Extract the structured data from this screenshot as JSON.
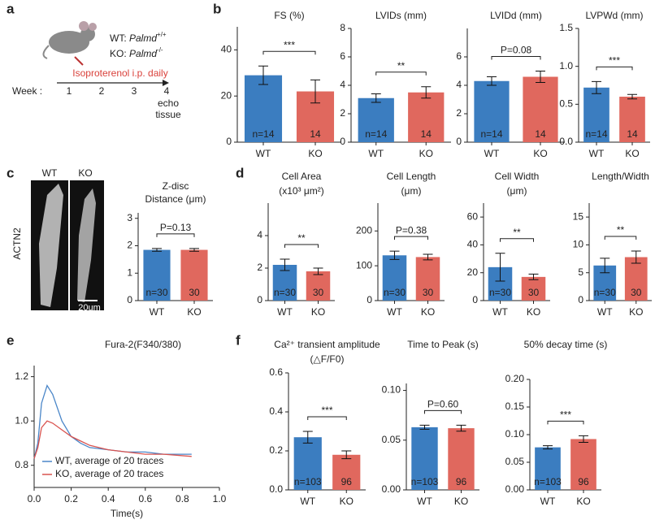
{
  "panel_labels": [
    "a",
    "b",
    "c",
    "d",
    "e",
    "f"
  ],
  "schematic": {
    "genotypes": [
      {
        "label": "WT: ",
        "gene": "Palmd",
        "sup": "+/+"
      },
      {
        "label": "KO: ",
        "gene": "Palmd",
        "sup": "-/-"
      }
    ],
    "treatment": "Isoproterenol i.p. daily",
    "week_label": "Week :",
    "weeks": [
      "1",
      "2",
      "3",
      "4"
    ],
    "endpoints": [
      "echo",
      "tissue"
    ]
  },
  "images": {
    "labels": [
      "WT",
      "KO"
    ],
    "stain": "ACTN2",
    "scale_bar": "20um"
  },
  "chart_data": [
    {
      "type": "bar",
      "title": [
        "FS (%)"
      ],
      "categories": [
        "WT",
        "KO"
      ],
      "values": [
        29,
        22
      ],
      "errors": [
        4,
        5
      ],
      "colors": [
        "#3b7dc0",
        "#e0685e"
      ],
      "ylim": [
        0,
        50
      ],
      "yticks": [
        0,
        20,
        40
      ],
      "n_labels": [
        "n=14",
        "14"
      ],
      "annotation": "***"
    },
    {
      "type": "bar",
      "title": [
        "LVIDs (mm)"
      ],
      "categories": [
        "WT",
        "KO"
      ],
      "values": [
        3.1,
        3.5
      ],
      "errors": [
        0.3,
        0.4
      ],
      "colors": [
        "#3b7dc0",
        "#e0685e"
      ],
      "ylim": [
        0,
        8
      ],
      "yticks": [
        0,
        2,
        4,
        6,
        8
      ],
      "n_labels": [
        "n=14",
        "14"
      ],
      "annotation": "**"
    },
    {
      "type": "bar",
      "title": [
        "LVIDd (mm)"
      ],
      "categories": [
        "WT",
        "KO"
      ],
      "values": [
        4.3,
        4.6
      ],
      "errors": [
        0.3,
        0.4
      ],
      "colors": [
        "#3b7dc0",
        "#e0685e"
      ],
      "ylim": [
        0,
        8
      ],
      "yticks": [
        0,
        2,
        4,
        6
      ],
      "n_labels": [
        "n=14",
        "14"
      ],
      "annotation": "P=0.08"
    },
    {
      "type": "bar",
      "title": [
        "LVPWd (mm)"
      ],
      "categories": [
        "WT",
        "KO"
      ],
      "values": [
        0.72,
        0.6
      ],
      "errors": [
        0.08,
        0.03
      ],
      "colors": [
        "#3b7dc0",
        "#e0685e"
      ],
      "ylim": [
        0,
        1.5
      ],
      "yticks": [
        {
          "value": 0,
          "label": "0.0"
        },
        0.5,
        {
          "value": 1,
          "label": "1.0"
        },
        1.5
      ],
      "n_labels": [
        "n=14",
        "14"
      ],
      "annotation": "***"
    },
    {
      "type": "bar",
      "title": [
        "Z-disc",
        "Distance (μm)"
      ],
      "categories": [
        "WT",
        "KO"
      ],
      "values": [
        1.85,
        1.85
      ],
      "errors": [
        0.05,
        0.05
      ],
      "colors": [
        "#3b7dc0",
        "#e0685e"
      ],
      "ylim": [
        0,
        3.2
      ],
      "yticks": [
        0,
        1,
        2,
        3
      ],
      "n_labels": [
        "n=30",
        "30"
      ],
      "annotation": "P=0.13"
    },
    {
      "type": "bar",
      "title": [
        "Cell Area",
        "(x10³ μm²)"
      ],
      "categories": [
        "WT",
        "KO"
      ],
      "values": [
        2.2,
        1.8
      ],
      "errors": [
        0.35,
        0.2
      ],
      "colors": [
        "#3b7dc0",
        "#e0685e"
      ],
      "ylim": [
        0,
        6
      ],
      "yticks": [
        0,
        2,
        4
      ],
      "n_labels": [
        "n=30",
        "30"
      ],
      "annotation": "**"
    },
    {
      "type": "bar",
      "title": [
        "Cell Length",
        "(μm)"
      ],
      "categories": [
        "WT",
        "KO"
      ],
      "values": [
        130,
        125
      ],
      "errors": [
        12,
        8
      ],
      "colors": [
        "#3b7dc0",
        "#e0685e"
      ],
      "ylim": [
        0,
        280
      ],
      "yticks": [
        0,
        100,
        200
      ],
      "n_labels": [
        "n=30",
        "30"
      ],
      "annotation": "P=0.38"
    },
    {
      "type": "bar",
      "title": [
        "Cell Width",
        "(μm)"
      ],
      "categories": [
        "WT",
        "KO"
      ],
      "values": [
        24,
        17
      ],
      "errors": [
        10,
        2
      ],
      "colors": [
        "#3b7dc0",
        "#e0685e"
      ],
      "ylim": [
        0,
        70
      ],
      "yticks": [
        0,
        20,
        40,
        60
      ],
      "n_labels": [
        "n=30",
        "30"
      ],
      "annotation": "**"
    },
    {
      "type": "bar",
      "title": [
        "Length/Width"
      ],
      "categories": [
        "WT",
        "KO"
      ],
      "values": [
        6.3,
        7.8
      ],
      "errors": [
        1.3,
        1.1
      ],
      "colors": [
        "#3b7dc0",
        "#e0685e"
      ],
      "ylim": [
        0,
        17.5
      ],
      "yticks": [
        0,
        5,
        10,
        15
      ],
      "n_labels": [
        "n=30",
        "30"
      ],
      "annotation": "**"
    },
    {
      "type": "line",
      "title": "Fura-2(F340/380)",
      "x_label": "Time(s)",
      "x": [
        0.0,
        0.02,
        0.04,
        0.07,
        0.1,
        0.15,
        0.2,
        0.25,
        0.3,
        0.4,
        0.5,
        0.6,
        0.7,
        0.85
      ],
      "series": [
        {
          "name": "WT, average of 20 traces",
          "color": "#4a86c8",
          "values": [
            0.83,
            0.9,
            1.08,
            1.16,
            1.12,
            1.0,
            0.93,
            0.9,
            0.88,
            0.87,
            0.86,
            0.86,
            0.85,
            0.85
          ]
        },
        {
          "name": "KO, average of 20 traces",
          "color": "#d9534f",
          "values": [
            0.83,
            0.88,
            0.97,
            1.0,
            0.99,
            0.96,
            0.93,
            0.91,
            0.89,
            0.87,
            0.86,
            0.85,
            0.85,
            0.84
          ]
        }
      ],
      "xlim": [
        0,
        1
      ],
      "xticks": [
        {
          "value": 0,
          "label": "0.0"
        },
        0.2,
        0.4,
        0.6,
        0.8,
        {
          "value": 1,
          "label": "1.0"
        }
      ],
      "ylim": [
        0.7,
        1.25
      ],
      "yticks": [
        0.8,
        {
          "value": 1,
          "label": "1.0"
        },
        1.2
      ]
    },
    {
      "type": "bar",
      "title": [
        "Ca²⁺ transient amplitude",
        "(△F/F0)"
      ],
      "categories": [
        "WT",
        "KO"
      ],
      "values": [
        0.27,
        0.18
      ],
      "errors": [
        0.03,
        0.02
      ],
      "colors": [
        "#3b7dc0",
        "#e0685e"
      ],
      "ylim": [
        0,
        0.6
      ],
      "yticks": [
        {
          "value": 0,
          "label": "0.0"
        },
        0.2,
        0.4,
        0.6
      ],
      "n_labels": [
        "n=103",
        "96"
      ],
      "annotation": "***"
    },
    {
      "type": "bar",
      "title": [
        "Time to Peak (s)"
      ],
      "categories": [
        "WT",
        "KO"
      ],
      "values": [
        0.063,
        0.062
      ],
      "errors": [
        0.002,
        0.003
      ],
      "colors": [
        "#3b7dc0",
        "#e0685e"
      ],
      "ylim": [
        0,
        0.107
      ],
      "yticks": [
        {
          "value": 0,
          "label": "0.00"
        },
        {
          "value": 0.05,
          "label": "0.05"
        },
        {
          "value": 0.1,
          "label": "0.10"
        }
      ],
      "n_labels": [
        "n=103",
        "96"
      ],
      "annotation": "P=0.60"
    },
    {
      "type": "bar",
      "title": [
        "50% decay time (s)"
      ],
      "categories": [
        "WT",
        "KO"
      ],
      "values": [
        0.077,
        0.092
      ],
      "errors": [
        0.003,
        0.006
      ],
      "colors": [
        "#3b7dc0",
        "#e0685e"
      ],
      "ylim": [
        0,
        0.2
      ],
      "yticks": [
        {
          "value": 0,
          "label": "0.00"
        },
        {
          "value": 0.05,
          "label": "0.05"
        },
        {
          "value": 0.1,
          "label": "0.10"
        },
        {
          "value": 0.15,
          "label": "0.15"
        },
        {
          "value": 0.2,
          "label": "0.20"
        }
      ],
      "n_labels": [
        "n=103",
        "96"
      ],
      "annotation": "***"
    }
  ]
}
